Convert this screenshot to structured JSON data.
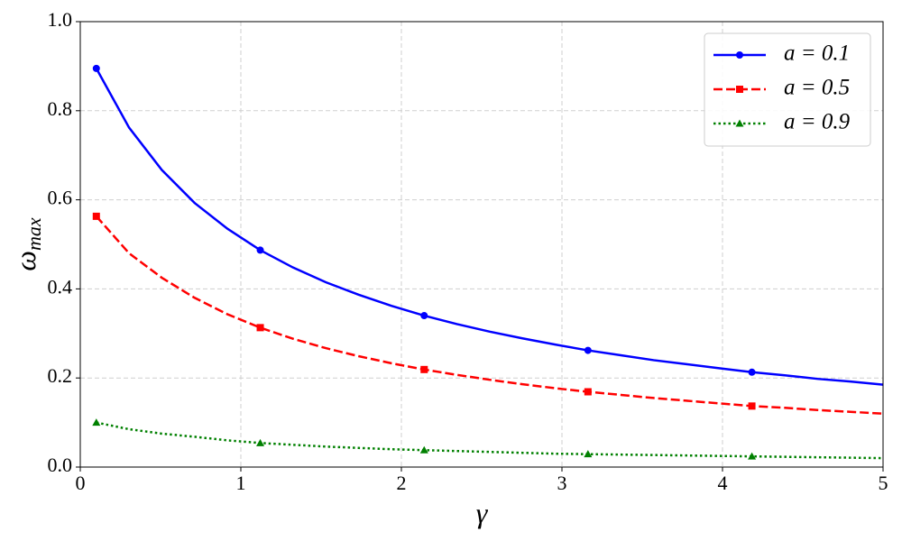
{
  "chart_data": {
    "type": "line",
    "xlabel": "γ",
    "ylabel": "ω",
    "ylabel_sub": "max",
    "x": [
      0.1,
      0.304,
      0.508,
      0.712,
      0.917,
      1.121,
      1.325,
      1.529,
      1.733,
      1.938,
      2.142,
      2.346,
      2.55,
      2.754,
      2.958,
      3.162,
      3.367,
      3.571,
      3.775,
      3.979,
      4.183,
      4.388,
      4.592,
      4.796,
      5.0
    ],
    "series": [
      {
        "name": "a = 0.1",
        "color": "#0000ff",
        "dash": "solid",
        "marker": "circle",
        "values": [
          0.895,
          0.762,
          0.667,
          0.593,
          0.535,
          0.487,
          0.448,
          0.415,
          0.387,
          0.362,
          0.34,
          0.321,
          0.304,
          0.289,
          0.275,
          0.262,
          0.251,
          0.24,
          0.231,
          0.222,
          0.213,
          0.206,
          0.198,
          0.192,
          0.185
        ]
      },
      {
        "name": "a = 0.5",
        "color": "#ff0000",
        "dash": "dashed",
        "marker": "square",
        "values": [
          0.563,
          0.48,
          0.425,
          0.38,
          0.343,
          0.313,
          0.288,
          0.267,
          0.249,
          0.233,
          0.219,
          0.207,
          0.196,
          0.186,
          0.177,
          0.169,
          0.162,
          0.155,
          0.149,
          0.143,
          0.137,
          0.133,
          0.128,
          0.124,
          0.12
        ]
      },
      {
        "name": "a = 0.9",
        "color": "#008000",
        "dash": "dotted",
        "marker": "triangle",
        "values": [
          0.1,
          0.085,
          0.075,
          0.068,
          0.06,
          0.054,
          0.05,
          0.046,
          0.043,
          0.04,
          0.038,
          0.036,
          0.034,
          0.032,
          0.03,
          0.029,
          0.028,
          0.027,
          0.026,
          0.025,
          0.024,
          0.023,
          0.022,
          0.021,
          0.02
        ]
      }
    ],
    "markevery": 5,
    "xlim": [
      0,
      5
    ],
    "xticks": [
      0,
      1,
      2,
      3,
      4,
      5
    ],
    "ylim": [
      0,
      1
    ],
    "yticks": [
      {
        "value": 0,
        "label": "0.0"
      },
      0.2,
      0.4,
      0.6,
      0.8,
      {
        "value": 1,
        "label": "1.0"
      }
    ],
    "grid": true,
    "legend": "upper right"
  }
}
